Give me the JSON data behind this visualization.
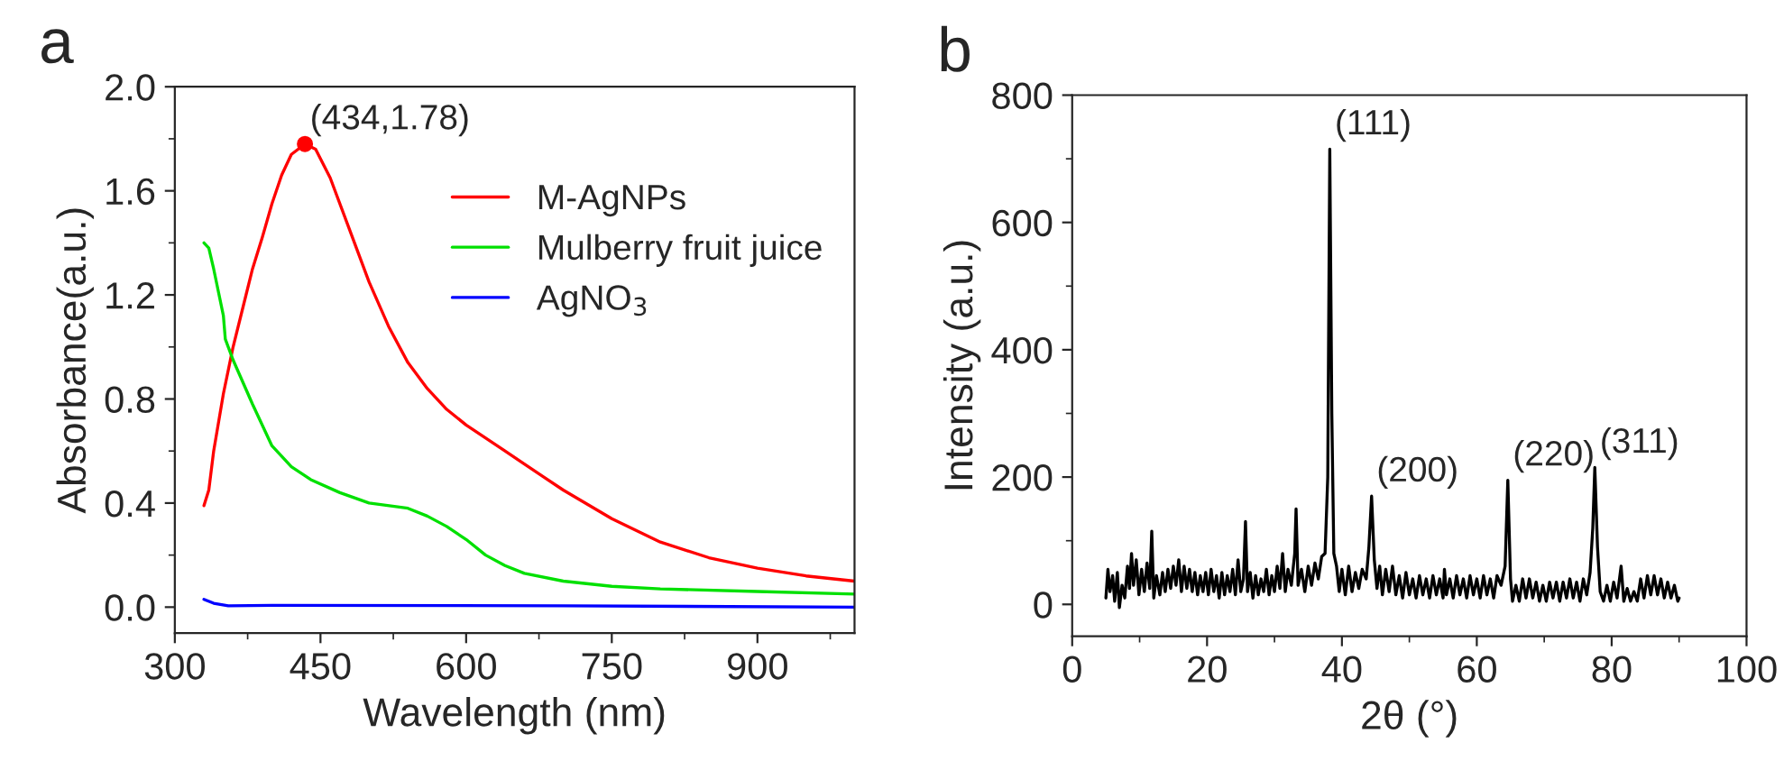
{
  "chart_data": [
    {
      "type": "line",
      "xlabel": "Wavelength (nm)",
      "ylabel": "Absorbance(a.u.)",
      "legend": "top right",
      "annotations": [
        "a",
        {
          "text": "(434,1.78)",
          "x": 434,
          "y": 1.78
        }
      ],
      "xlim": [
        300,
        1000
      ],
      "xticks": [
        300,
        450,
        600,
        750,
        900
      ],
      "ylim": [
        -0.1,
        2.0
      ],
      "yticks": [
        {
          "value": 0,
          "label": "0.0"
        },
        {
          "value": 0.4,
          "label": "0.4"
        },
        {
          "value": 0.8,
          "label": "0.8"
        },
        {
          "value": 1.2,
          "label": "1.2"
        },
        {
          "value": 1.6,
          "label": "1.6"
        },
        {
          "value": 2.0,
          "label": "2.0"
        }
      ],
      "series": [
        {
          "name": "M-AgNPs",
          "color": "#ff0000",
          "x": [
            330,
            335,
            340,
            350,
            360,
            370,
            380,
            390,
            400,
            410,
            420,
            434,
            445,
            460,
            480,
            500,
            520,
            540,
            560,
            580,
            600,
            640,
            680,
            700,
            750,
            800,
            850,
            900,
            950,
            1000
          ],
          "values": [
            0.39,
            0.45,
            0.6,
            0.82,
            1.0,
            1.15,
            1.3,
            1.42,
            1.55,
            1.66,
            1.74,
            1.78,
            1.76,
            1.65,
            1.45,
            1.25,
            1.08,
            0.94,
            0.84,
            0.76,
            0.7,
            0.6,
            0.5,
            0.45,
            0.34,
            0.25,
            0.19,
            0.15,
            0.12,
            0.1
          ]
        },
        {
          "name": "Mulberry fruit juice",
          "color": "#00e000",
          "x": [
            330,
            335,
            340,
            350,
            352,
            360,
            380,
            400,
            420,
            440,
            470,
            500,
            540,
            560,
            580,
            600,
            620,
            640,
            660,
            700,
            750,
            800,
            900,
            1000
          ],
          "values": [
            1.4,
            1.38,
            1.3,
            1.12,
            1.03,
            0.95,
            0.78,
            0.62,
            0.54,
            0.49,
            0.44,
            0.4,
            0.38,
            0.35,
            0.31,
            0.26,
            0.2,
            0.16,
            0.13,
            0.1,
            0.08,
            0.07,
            0.06,
            0.05
          ]
        },
        {
          "name": "AgNO$_{3}$",
          "color": "#0000ff",
          "x": [
            330,
            340,
            355,
            400,
            700,
            1000
          ],
          "values": [
            0.03,
            0.015,
            0.005,
            0.007,
            0.005,
            0.0
          ]
        },
        {
          "type": "scatter",
          "color": "#ff0000",
          "x": [
            434
          ],
          "values": [
            1.78
          ]
        }
      ]
    },
    {
      "type": "line",
      "xlabel": "2θ (°)",
      "ylabel": "Intensity (a.u.)",
      "annotations": [
        "b",
        {
          "text": "(111)",
          "x": 38.2,
          "y": 715
        },
        {
          "text": "(200)",
          "x": 44.4,
          "y": 170
        },
        {
          "text": "(220)",
          "x": 64.6,
          "y": 195
        },
        {
          "text": "(311)",
          "x": 77.5,
          "y": 215
        }
      ],
      "xlim": [
        0,
        100
      ],
      "xticks": [
        0,
        20,
        40,
        60,
        80,
        100
      ],
      "ylim": [
        -50,
        800
      ],
      "yticks": [
        0,
        200,
        400,
        600,
        800
      ],
      "series": [
        {
          "color": "#000000",
          "x": [
            5.0,
            5.3,
            5.6,
            6.0,
            6.3,
            6.7,
            7.0,
            7.4,
            7.8,
            8.2,
            8.5,
            8.8,
            9.1,
            9.5,
            9.9,
            10.3,
            10.7,
            11.1,
            11.5,
            11.8,
            12.1,
            12.5,
            13.0,
            13.4,
            13.8,
            14.2,
            14.6,
            15.0,
            15.4,
            15.8,
            16.2,
            16.6,
            17.0,
            17.4,
            17.8,
            18.2,
            18.6,
            19.0,
            19.4,
            19.8,
            20.2,
            20.6,
            21.0,
            21.4,
            21.8,
            22.2,
            22.6,
            23.0,
            23.4,
            23.8,
            24.2,
            24.6,
            25.0,
            25.4,
            25.7,
            26.0,
            26.4,
            26.8,
            27.2,
            27.6,
            28.0,
            28.4,
            28.8,
            29.2,
            29.6,
            30.0,
            30.4,
            30.8,
            31.2,
            31.6,
            32.0,
            32.5,
            33.0,
            33.2,
            33.5,
            34.0,
            34.5,
            35.0,
            35.5,
            36.0,
            36.5,
            37.0,
            37.5,
            37.9,
            38.2,
            38.5,
            38.8,
            39.2,
            39.6,
            40.0,
            40.5,
            41.0,
            41.5,
            42.0,
            42.5,
            43.0,
            43.6,
            44.0,
            44.4,
            44.8,
            45.2,
            45.6,
            46.0,
            46.5,
            47.0,
            47.5,
            48.0,
            48.5,
            49.0,
            49.5,
            50.0,
            50.5,
            51.0,
            51.5,
            52.0,
            52.5,
            53.0,
            53.5,
            54.0,
            54.5,
            55.0,
            55.2,
            55.5,
            56.0,
            56.5,
            57.0,
            57.5,
            58.0,
            58.5,
            59.0,
            59.5,
            60.0,
            60.5,
            61.0,
            61.5,
            62.0,
            62.5,
            63.0,
            63.6,
            64.2,
            64.6,
            65.0,
            65.3,
            65.8,
            66.3,
            66.8,
            67.3,
            67.8,
            68.3,
            68.8,
            69.3,
            69.8,
            70.3,
            70.8,
            71.3,
            71.8,
            72.3,
            72.8,
            73.3,
            73.8,
            74.3,
            74.8,
            75.3,
            75.8,
            76.3,
            76.8,
            77.2,
            77.5,
            77.9,
            78.3,
            78.8,
            79.3,
            79.8,
            80.3,
            80.8,
            81.4,
            81.8,
            82.3,
            82.8,
            83.3,
            83.8,
            84.3,
            84.8,
            85.3,
            85.8,
            86.3,
            86.8,
            87.3,
            87.8,
            88.3,
            88.8,
            89.3,
            89.8,
            90.0
          ],
          "values": [
            10,
            55,
            20,
            45,
            5,
            50,
            -5,
            30,
            10,
            60,
            25,
            80,
            30,
            70,
            15,
            55,
            20,
            65,
            25,
            115,
            10,
            45,
            15,
            50,
            20,
            55,
            25,
            60,
            30,
            70,
            20,
            60,
            25,
            55,
            20,
            50,
            15,
            45,
            20,
            50,
            15,
            55,
            20,
            45,
            10,
            50,
            15,
            45,
            20,
            55,
            15,
            70,
            20,
            40,
            130,
            20,
            50,
            10,
            45,
            15,
            40,
            20,
            55,
            15,
            45,
            20,
            60,
            25,
            80,
            20,
            55,
            30,
            80,
            150,
            30,
            55,
            20,
            60,
            30,
            65,
            40,
            75,
            80,
            200,
            715,
            300,
            80,
            60,
            20,
            55,
            15,
            60,
            20,
            50,
            25,
            55,
            40,
            90,
            170,
            70,
            25,
            60,
            15,
            55,
            20,
            60,
            15,
            45,
            10,
            50,
            15,
            40,
            10,
            45,
            15,
            40,
            10,
            45,
            15,
            40,
            10,
            55,
            15,
            40,
            10,
            45,
            15,
            40,
            10,
            45,
            15,
            40,
            10,
            45,
            15,
            40,
            10,
            45,
            30,
            60,
            195,
            40,
            5,
            30,
            5,
            40,
            10,
            40,
            10,
            35,
            5,
            30,
            5,
            35,
            10,
            35,
            5,
            35,
            10,
            40,
            10,
            35,
            5,
            40,
            15,
            50,
            120,
            215,
            90,
            20,
            5,
            30,
            5,
            35,
            10,
            60,
            5,
            25,
            5,
            20,
            5,
            40,
            10,
            45,
            15,
            45,
            15,
            40,
            10,
            35,
            10,
            30,
            5,
            10
          ]
        }
      ]
    }
  ]
}
